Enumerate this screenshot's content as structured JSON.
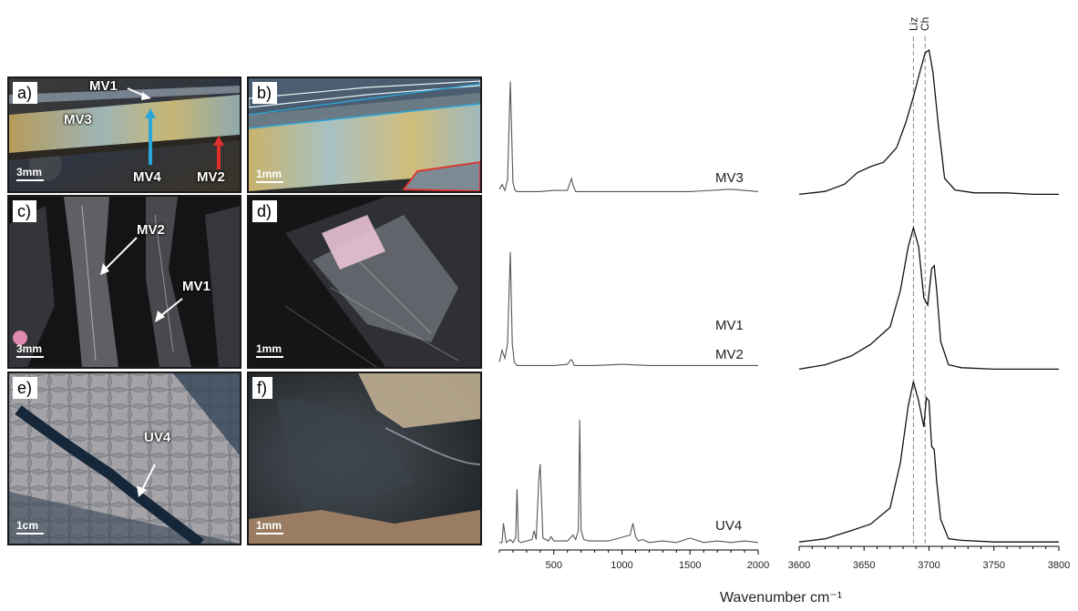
{
  "panels": [
    {
      "tag": "a)",
      "scale": "3mm",
      "labels": [
        "MV1",
        "MV3",
        "MV4",
        "MV2"
      ]
    },
    {
      "tag": "b)",
      "scale": "1mm"
    },
    {
      "tag": "c)",
      "scale": "3mm",
      "labels": [
        "MV2",
        "MV1"
      ]
    },
    {
      "tag": "d)",
      "scale": "1mm"
    },
    {
      "tag": "e)",
      "scale": "1cm",
      "labels": [
        "UV4"
      ]
    },
    {
      "tag": "f)",
      "scale": "1mm"
    }
  ],
  "marker_colors": {
    "MV4": "#2aa6d8",
    "MV2": "#e0302a"
  },
  "reference_lines": {
    "Liz": 3688,
    "Ch": 3697
  },
  "xlabel": "Wavenumber cm⁻¹",
  "chart_data": [
    {
      "type": "line",
      "xlabel": "",
      "xlim": [
        100,
        2000
      ],
      "xticks": [
        500,
        1000,
        1500,
        2000
      ],
      "series": [
        {
          "name": "MV3",
          "x": [
            100,
            120,
            140,
            160,
            180,
            200,
            215,
            230,
            260,
            300,
            400,
            500,
            600,
            620,
            630,
            640,
            660,
            700,
            800,
            1000,
            1200,
            1500,
            1800,
            2000
          ],
          "y": [
            0.04,
            0.08,
            0.03,
            0.12,
            0.95,
            0.1,
            0.03,
            0.02,
            0.02,
            0.02,
            0.02,
            0.03,
            0.03,
            0.1,
            0.13,
            0.08,
            0.02,
            0.02,
            0.02,
            0.02,
            0.02,
            0.02,
            0.04,
            0.02
          ]
        },
        {
          "name": "MV1",
          "x": [
            100,
            120,
            140,
            160,
            180,
            195,
            210,
            230,
            260,
            300,
            400,
            500,
            600,
            625,
            635,
            650,
            700,
            800,
            1000,
            1200,
            1500,
            1800,
            2000
          ],
          "y": [
            0.05,
            0.15,
            0.08,
            0.2,
            0.98,
            0.2,
            0.05,
            0.02,
            0.02,
            0.02,
            0.02,
            0.02,
            0.03,
            0.07,
            0.06,
            0.02,
            0.02,
            0.02,
            0.03,
            0.02,
            0.02,
            0.02,
            0.02
          ]
        },
        {
          "name": "UV4",
          "x": [
            100,
            120,
            130,
            150,
            180,
            200,
            220,
            230,
            240,
            260,
            300,
            340,
            355,
            370,
            390,
            400,
            420,
            460,
            480,
            500,
            600,
            640,
            660,
            680,
            690,
            700,
            720,
            760,
            900,
            1060,
            1080,
            1100,
            1120,
            1150,
            1200,
            1300,
            1400,
            1500,
            1600,
            1700,
            1800,
            1900,
            2000
          ],
          "y": [
            0.02,
            0.02,
            0.15,
            0.02,
            0.04,
            0.02,
            0.05,
            0.38,
            0.03,
            0.02,
            0.03,
            0.04,
            0.1,
            0.04,
            0.45,
            0.55,
            0.05,
            0.03,
            0.06,
            0.03,
            0.03,
            0.07,
            0.04,
            0.1,
            0.85,
            0.1,
            0.04,
            0.03,
            0.03,
            0.07,
            0.15,
            0.06,
            0.03,
            0.04,
            0.02,
            0.03,
            0.02,
            0.05,
            0.02,
            0.03,
            0.02,
            0.03,
            0.02
          ]
        }
      ],
      "labels": [
        "MV3",
        "MV1",
        "MV2",
        "UV4"
      ]
    },
    {
      "type": "line",
      "xlim": [
        3600,
        3800
      ],
      "xticks": [
        3600,
        3650,
        3700,
        3750,
        3800
      ],
      "series": [
        {
          "x": [
            3600,
            3620,
            3635,
            3645,
            3655,
            3665,
            3675,
            3682,
            3688,
            3693,
            3697,
            3700,
            3703,
            3707,
            3712,
            3720,
            3735,
            3760,
            3780,
            3800
          ],
          "y": [
            0.01,
            0.03,
            0.08,
            0.16,
            0.2,
            0.23,
            0.33,
            0.5,
            0.68,
            0.85,
            0.98,
            1.0,
            0.85,
            0.5,
            0.12,
            0.04,
            0.02,
            0.02,
            0.01,
            0.01
          ]
        },
        {
          "x": [
            3600,
            3620,
            3640,
            3655,
            3670,
            3678,
            3684,
            3688,
            3692,
            3696,
            3699,
            3702,
            3704,
            3706,
            3709,
            3715,
            3725,
            3750,
            3780,
            3800
          ],
          "y": [
            0.01,
            0.04,
            0.1,
            0.18,
            0.3,
            0.55,
            0.85,
            0.98,
            0.85,
            0.5,
            0.45,
            0.7,
            0.72,
            0.55,
            0.2,
            0.04,
            0.02,
            0.01,
            0.01,
            0.01
          ]
        },
        {
          "x": [
            3600,
            3620,
            3640,
            3655,
            3670,
            3678,
            3684,
            3688,
            3692,
            3696,
            3698,
            3700,
            3702,
            3704,
            3706,
            3709,
            3715,
            3725,
            3750,
            3780,
            3800
          ],
          "y": [
            0.01,
            0.03,
            0.08,
            0.12,
            0.22,
            0.5,
            0.85,
            1.0,
            0.88,
            0.72,
            0.9,
            0.88,
            0.6,
            0.58,
            0.38,
            0.15,
            0.03,
            0.02,
            0.01,
            0.01,
            0.01
          ]
        }
      ],
      "annotations": [
        "Liz",
        "Ch"
      ]
    }
  ]
}
